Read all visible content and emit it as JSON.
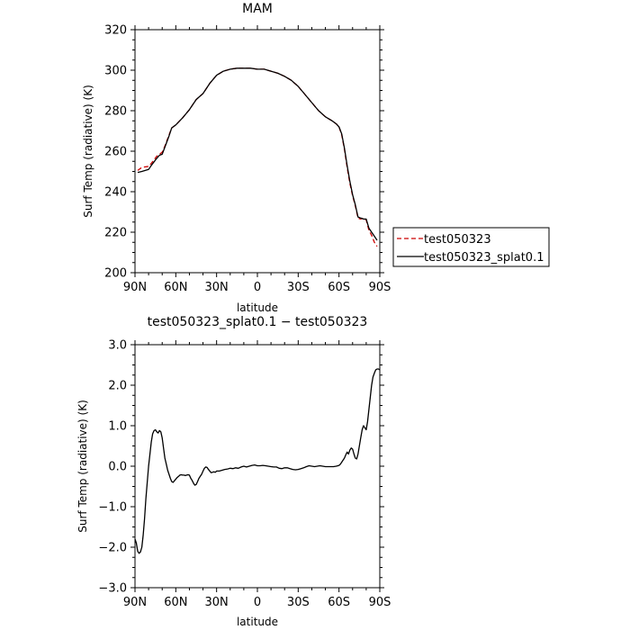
{
  "chart_data": [
    {
      "type": "line",
      "title": "MAM",
      "xlabel": "latitude",
      "ylabel": "Surf Temp (radiative) (K)",
      "xlim": [
        90,
        -90
      ],
      "ylim": [
        200,
        320
      ],
      "x_ticks": [
        {
          "value": 90,
          "label": "90N"
        },
        {
          "value": 60,
          "label": "60N"
        },
        {
          "value": 30,
          "label": "30N"
        },
        {
          "value": 0,
          "label": "0"
        },
        {
          "value": -30,
          "label": "30S"
        },
        {
          "value": -60,
          "label": "60S"
        },
        {
          "value": -90,
          "label": "90S"
        }
      ],
      "y_ticks": [
        {
          "value": 200,
          "label": "200"
        },
        {
          "value": 220,
          "label": "220"
        },
        {
          "value": 240,
          "label": "240"
        },
        {
          "value": 260,
          "label": "260"
        },
        {
          "value": 280,
          "label": "280"
        },
        {
          "value": 300,
          "label": "300"
        },
        {
          "value": 320,
          "label": "320"
        }
      ],
      "legend": "right",
      "series": [
        {
          "name": "test050323",
          "color": "#cc0000",
          "dash": "dashed",
          "x": [
            88,
            85,
            80,
            78,
            74,
            72,
            70,
            68,
            65,
            63,
            60,
            55,
            50,
            45,
            40,
            35,
            30,
            25,
            20,
            15,
            10,
            5,
            0,
            -5,
            -10,
            -15,
            -20,
            -25,
            -30,
            -35,
            -40,
            -45,
            -50,
            -55,
            -58,
            -60,
            -62,
            -64,
            -66,
            -68,
            -70,
            -72,
            -74,
            -76,
            -78,
            -80,
            -82,
            -84,
            -86,
            -88
          ],
          "y": [
            250.5,
            252,
            252.5,
            254,
            257.5,
            258.5,
            259.5,
            262.5,
            268,
            271.5,
            273,
            276.5,
            280.5,
            285.5,
            288.5,
            293.5,
            297.5,
            299.5,
            300.5,
            301.0,
            301.0,
            301.0,
            300.5,
            300.5,
            299.5,
            298.5,
            297,
            295,
            292,
            288,
            284,
            280,
            277,
            275,
            273.5,
            272,
            268,
            261,
            252,
            244,
            238,
            233,
            227,
            226.5,
            227,
            226,
            221,
            218.5,
            215,
            213
          ]
        },
        {
          "name": "test050323_splat0.1",
          "color": "#000000",
          "dash": "solid",
          "x": [
            88,
            85,
            80,
            78,
            74,
            72,
            70,
            68,
            65,
            63,
            60,
            55,
            50,
            45,
            40,
            35,
            30,
            25,
            20,
            15,
            10,
            5,
            0,
            -5,
            -10,
            -15,
            -20,
            -25,
            -30,
            -35,
            -40,
            -45,
            -50,
            -55,
            -58,
            -60,
            -62,
            -64,
            -66,
            -68,
            -70,
            -72,
            -74,
            -76,
            -78,
            -80,
            -82,
            -84,
            -86,
            -88
          ],
          "y": [
            249.5,
            250,
            251,
            253,
            256.5,
            258,
            258.5,
            262,
            267.5,
            271.5,
            273,
            276.5,
            280.5,
            285.5,
            288.5,
            293.5,
            297.5,
            299.5,
            300.5,
            301.0,
            301.0,
            301.0,
            300.5,
            300.5,
            299.5,
            298.5,
            297,
            295,
            292,
            288,
            284,
            280,
            277,
            275,
            273.5,
            272,
            268.5,
            261.5,
            253,
            245,
            238.5,
            233.5,
            227.5,
            227,
            226.5,
            226.5,
            222,
            220,
            218,
            216
          ]
        }
      ]
    },
    {
      "type": "line",
      "title": "test050323_splat0.1 − test050323",
      "xlabel": "latitude",
      "ylabel": "Surf Temp (radiative) (K)",
      "xlim": [
        90,
        -90
      ],
      "ylim": [
        -3.0,
        3.0
      ],
      "x_ticks": [
        {
          "value": 90,
          "label": "90N"
        },
        {
          "value": 60,
          "label": "60N"
        },
        {
          "value": 30,
          "label": "30N"
        },
        {
          "value": 0,
          "label": "0"
        },
        {
          "value": -30,
          "label": "30S"
        },
        {
          "value": -60,
          "label": "60S"
        },
        {
          "value": -90,
          "label": "90S"
        }
      ],
      "y_ticks": [
        {
          "value": -3.0,
          "label": "−3.0"
        },
        {
          "value": -2.0,
          "label": "−2.0"
        },
        {
          "value": -1.0,
          "label": "−1.0"
        },
        {
          "value": 0.0,
          "label": "0.0"
        },
        {
          "value": 1.0,
          "label": "1.0"
        },
        {
          "value": 2.0,
          "label": "2.0"
        },
        {
          "value": 3.0,
          "label": "3.0"
        }
      ],
      "series": [
        {
          "color": "#000000",
          "dash": "solid",
          "x": [
            90,
            89,
            88,
            87,
            86,
            85,
            84,
            83,
            82,
            81,
            80,
            79,
            78,
            77,
            76,
            75,
            74,
            73,
            72,
            71,
            70,
            69,
            68,
            67,
            66,
            65,
            64,
            63,
            62,
            61,
            60,
            59,
            58,
            57,
            56,
            55,
            54,
            53,
            52,
            51,
            50,
            49,
            48,
            47,
            46,
            45,
            44,
            43,
            42,
            41,
            40,
            39,
            38,
            37,
            36,
            35,
            34,
            33,
            32,
            31,
            30,
            28,
            26,
            24,
            22,
            20,
            18,
            16,
            14,
            12,
            10,
            8,
            6,
            4,
            2,
            0,
            -2,
            -4,
            -6,
            -8,
            -10,
            -12,
            -14,
            -16,
            -18,
            -20,
            -22,
            -24,
            -26,
            -28,
            -30,
            -32,
            -34,
            -36,
            -38,
            -40,
            -42,
            -44,
            -46,
            -48,
            -50,
            -52,
            -54,
            -56,
            -58,
            -60,
            -61,
            -62,
            -63,
            -64,
            -65,
            -66,
            -67,
            -68,
            -69,
            -70,
            -71,
            -72,
            -73,
            -74,
            -75,
            -76,
            -77,
            -78,
            -79,
            -80,
            -81,
            -82,
            -83,
            -84,
            -85,
            -86,
            -87,
            -88,
            -89,
            -90
          ],
          "y": [
            -1.8,
            -1.9,
            -2.1,
            -2.15,
            -2.12,
            -2.0,
            -1.7,
            -1.3,
            -0.8,
            -0.4,
            0.0,
            0.3,
            0.6,
            0.8,
            0.88,
            0.9,
            0.85,
            0.82,
            0.88,
            0.85,
            0.7,
            0.45,
            0.2,
            0.05,
            -0.1,
            -0.2,
            -0.3,
            -0.38,
            -0.4,
            -0.36,
            -0.32,
            -0.28,
            -0.25,
            -0.22,
            -0.21,
            -0.22,
            -0.22,
            -0.23,
            -0.22,
            -0.21,
            -0.22,
            -0.3,
            -0.35,
            -0.42,
            -0.47,
            -0.45,
            -0.38,
            -0.3,
            -0.25,
            -0.2,
            -0.12,
            -0.05,
            -0.02,
            -0.03,
            -0.08,
            -0.12,
            -0.16,
            -0.15,
            -0.14,
            -0.15,
            -0.12,
            -0.12,
            -0.1,
            -0.08,
            -0.07,
            -0.05,
            -0.06,
            -0.04,
            -0.05,
            -0.02,
            0.0,
            -0.02,
            0.0,
            0.02,
            0.03,
            0.01,
            0.01,
            0.02,
            0.01,
            0.0,
            -0.01,
            -0.02,
            -0.02,
            -0.05,
            -0.06,
            -0.04,
            -0.04,
            -0.06,
            -0.08,
            -0.09,
            -0.08,
            -0.06,
            -0.04,
            -0.01,
            0.01,
            0.0,
            -0.01,
            0.0,
            0.01,
            0.0,
            -0.01,
            -0.01,
            -0.01,
            -0.01,
            0.0,
            0.02,
            0.05,
            0.1,
            0.15,
            0.2,
            0.28,
            0.35,
            0.3,
            0.4,
            0.45,
            0.42,
            0.3,
            0.2,
            0.18,
            0.3,
            0.5,
            0.7,
            0.9,
            1.0,
            0.95,
            0.9,
            1.1,
            1.4,
            1.7,
            2.0,
            2.2,
            2.3,
            2.38,
            2.4,
            2.4,
            2.38
          ]
        }
      ]
    }
  ]
}
